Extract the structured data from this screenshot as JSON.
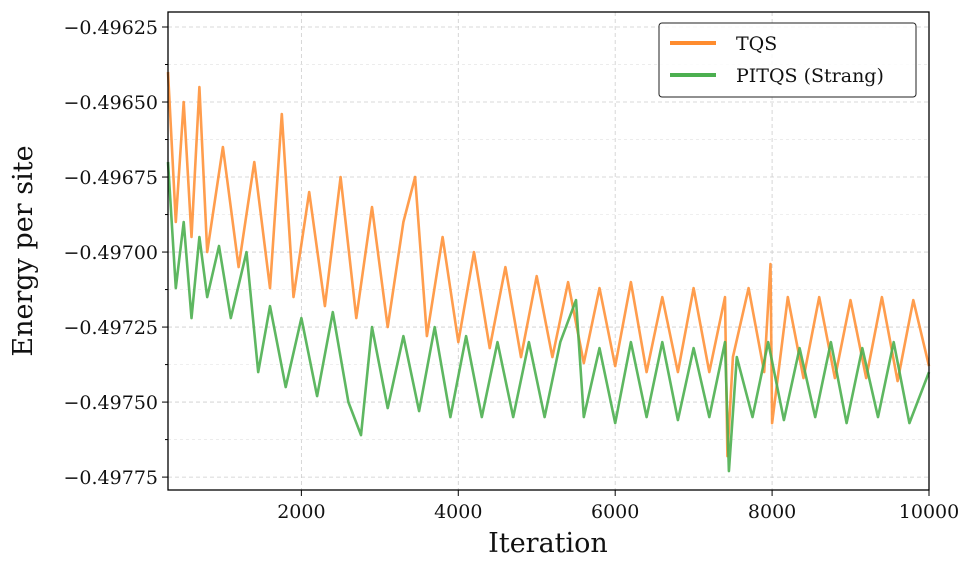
{
  "chart_data": {
    "type": "line",
    "title": "",
    "xlabel": "Iteration",
    "ylabel": "Energy per site",
    "xlim": [
      300,
      10000
    ],
    "ylim": [
      -0.497793,
      -0.4962
    ],
    "x_ticks": [
      2000,
      4000,
      6000,
      8000,
      10000
    ],
    "x_tick_labels": [
      "2000",
      "4000",
      "6000",
      "8000",
      "10000"
    ],
    "y_ticks": [
      -0.49625,
      -0.4965,
      -0.49675,
      -0.497,
      -0.49725,
      -0.4975,
      -0.49775
    ],
    "y_tick_labels": [
      "−0.49625",
      "−0.49650",
      "−0.49675",
      "−0.49700",
      "−0.49725",
      "−0.49750",
      "−0.49775"
    ],
    "grid": true,
    "legend_position": "top-right",
    "series": [
      {
        "name": "TQS",
        "color": "#ff8c2e",
        "x": [
          300,
          400,
          500,
          600,
          700,
          800,
          1000,
          1200,
          1400,
          1600,
          1750,
          1900,
          2100,
          2300,
          2500,
          2700,
          2900,
          3100,
          3300,
          3450,
          3600,
          3800,
          4000,
          4200,
          4400,
          4600,
          4800,
          5000,
          5200,
          5400,
          5600,
          5800,
          6000,
          6200,
          6400,
          6600,
          6800,
          7000,
          7200,
          7400,
          7430,
          7500,
          7700,
          7900,
          7980,
          8000,
          8200,
          8400,
          8600,
          8800,
          9000,
          9200,
          9400,
          9600,
          9800,
          10000
        ],
        "y": [
          -0.4964,
          -0.4969,
          -0.4965,
          -0.49695,
          -0.49645,
          -0.497,
          -0.49665,
          -0.49705,
          -0.4967,
          -0.49712,
          -0.49654,
          -0.49715,
          -0.4968,
          -0.49718,
          -0.49675,
          -0.49722,
          -0.49685,
          -0.49725,
          -0.4969,
          -0.49675,
          -0.49728,
          -0.49695,
          -0.4973,
          -0.497,
          -0.49732,
          -0.49705,
          -0.49735,
          -0.49708,
          -0.49735,
          -0.4971,
          -0.49737,
          -0.49712,
          -0.49738,
          -0.4971,
          -0.4974,
          -0.49715,
          -0.4974,
          -0.49712,
          -0.4974,
          -0.49715,
          -0.49768,
          -0.49735,
          -0.49712,
          -0.4974,
          -0.49704,
          -0.49757,
          -0.49715,
          -0.49742,
          -0.49715,
          -0.49742,
          -0.49716,
          -0.49742,
          -0.49715,
          -0.49743,
          -0.49716,
          -0.49738
        ]
      },
      {
        "name": "PITQS (Strang)",
        "color": "#4caf50",
        "x": [
          300,
          400,
          500,
          600,
          700,
          800,
          950,
          1100,
          1300,
          1450,
          1600,
          1800,
          2000,
          2200,
          2400,
          2600,
          2760,
          2900,
          3100,
          3300,
          3500,
          3700,
          3900,
          4100,
          4300,
          4500,
          4700,
          4900,
          5100,
          5300,
          5500,
          5600,
          5800,
          6000,
          6200,
          6400,
          6600,
          6800,
          7000,
          7200,
          7400,
          7450,
          7550,
          7750,
          7950,
          8150,
          8350,
          8550,
          8750,
          8950,
          9150,
          9350,
          9550,
          9750,
          10000
        ],
        "y": [
          -0.4967,
          -0.49712,
          -0.4969,
          -0.49722,
          -0.49695,
          -0.49715,
          -0.49698,
          -0.49722,
          -0.497,
          -0.4974,
          -0.49718,
          -0.49745,
          -0.49722,
          -0.49748,
          -0.4972,
          -0.4975,
          -0.49761,
          -0.49725,
          -0.49752,
          -0.49728,
          -0.49753,
          -0.49725,
          -0.49755,
          -0.49728,
          -0.49755,
          -0.4973,
          -0.49755,
          -0.4973,
          -0.49755,
          -0.4973,
          -0.49716,
          -0.49755,
          -0.49732,
          -0.49757,
          -0.4973,
          -0.49755,
          -0.4973,
          -0.49756,
          -0.49732,
          -0.49755,
          -0.4973,
          -0.49773,
          -0.49735,
          -0.49755,
          -0.4973,
          -0.49756,
          -0.49732,
          -0.49755,
          -0.4973,
          -0.49757,
          -0.49732,
          -0.49755,
          -0.4973,
          -0.49757,
          -0.4974
        ]
      }
    ]
  }
}
